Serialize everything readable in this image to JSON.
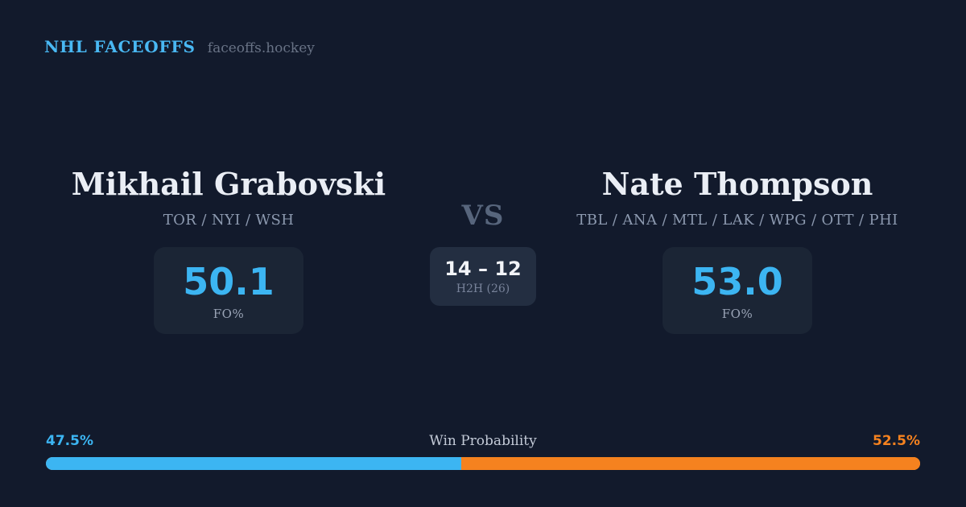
{
  "header": {
    "brand": "NHL FACEOFFS",
    "site": "faceoffs.hockey"
  },
  "matchup": {
    "vs_label": "VS",
    "h2h": {
      "score": "14 – 12",
      "label": "H2H (26)"
    },
    "players": [
      {
        "name": "Mikhail Grabovski",
        "teams": "TOR / NYI / WSH",
        "stat_value": "50.1",
        "stat_label": "FO%"
      },
      {
        "name": "Nate Thompson",
        "teams": "TBL / ANA / MTL / LAK / WPG / OTT / PHI",
        "stat_value": "53.0",
        "stat_label": "FO%"
      }
    ]
  },
  "win_probability": {
    "label": "Win Probability",
    "left": {
      "value_pct": 47.5,
      "display": "47.5%",
      "color": "#3cb5f2"
    },
    "right": {
      "value_pct": 52.5,
      "display": "52.5%",
      "color": "#f5821f"
    }
  },
  "colors": {
    "background": "#121a2c",
    "card": "#1b2535",
    "h2h_card": "#232e41",
    "accent_blue": "#3cb5f2",
    "accent_orange": "#f5821f",
    "text_primary": "#eaeef5",
    "text_muted": "#8c99af"
  }
}
